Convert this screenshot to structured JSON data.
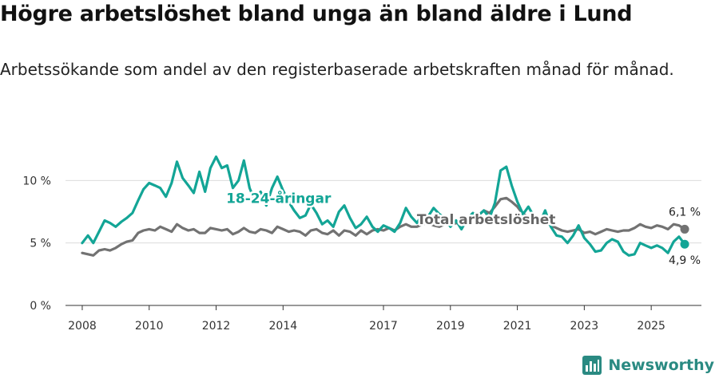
{
  "header": {
    "title": "Högre arbetslöshet bland unga än bland äldre i Lund",
    "subtitle": "Arbetssökande som andel av den registerbaserade arbetskraften månad för månad."
  },
  "brand": {
    "name": "Newsworthy"
  },
  "chart_data": {
    "type": "line",
    "title": "Högre arbetslöshet bland unga än bland äldre i Lund",
    "subtitle": "Arbetssökande som andel av den registerbaserade arbetskraften månad för månad.",
    "xlabel": "",
    "ylabel": "",
    "xlim": [
      2007.5,
      2026.5
    ],
    "ylim": [
      0,
      12
    ],
    "y_ticks": [
      {
        "value": 0,
        "label": "0 %"
      },
      {
        "value": 5,
        "label": "5 %"
      },
      {
        "value": 10,
        "label": "10 %"
      }
    ],
    "x_ticks": [
      "2008",
      "2010",
      "2012",
      "2014",
      "2017",
      "2019",
      "2021",
      "2023",
      "2025"
    ],
    "grid": true,
    "series": [
      {
        "name": "18-24-åringar",
        "label": "18-24-åringar",
        "color": "#13a596",
        "end_label": "4,9 %",
        "end_value": 4.9,
        "points": [
          [
            2008.0,
            5.0
          ],
          [
            2008.17,
            5.6
          ],
          [
            2008.33,
            5.0
          ],
          [
            2008.5,
            5.9
          ],
          [
            2008.67,
            6.8
          ],
          [
            2008.83,
            6.6
          ],
          [
            2009.0,
            6.3
          ],
          [
            2009.17,
            6.7
          ],
          [
            2009.33,
            7.0
          ],
          [
            2009.5,
            7.4
          ],
          [
            2009.67,
            8.4
          ],
          [
            2009.83,
            9.3
          ],
          [
            2010.0,
            9.8
          ],
          [
            2010.17,
            9.6
          ],
          [
            2010.33,
            9.4
          ],
          [
            2010.5,
            8.7
          ],
          [
            2010.67,
            9.8
          ],
          [
            2010.83,
            11.5
          ],
          [
            2011.0,
            10.2
          ],
          [
            2011.17,
            9.6
          ],
          [
            2011.33,
            9.0
          ],
          [
            2011.5,
            10.7
          ],
          [
            2011.67,
            9.1
          ],
          [
            2011.83,
            11.0
          ],
          [
            2012.0,
            11.9
          ],
          [
            2012.17,
            11.0
          ],
          [
            2012.33,
            11.2
          ],
          [
            2012.5,
            9.4
          ],
          [
            2012.67,
            10.0
          ],
          [
            2012.83,
            11.6
          ],
          [
            2013.0,
            9.4
          ],
          [
            2013.17,
            8.3
          ],
          [
            2013.33,
            9.1
          ],
          [
            2013.5,
            8.0
          ],
          [
            2013.67,
            9.4
          ],
          [
            2013.83,
            10.3
          ],
          [
            2014.0,
            9.2
          ],
          [
            2014.17,
            8.3
          ],
          [
            2014.33,
            7.6
          ],
          [
            2014.5,
            7.0
          ],
          [
            2014.67,
            7.2
          ],
          [
            2014.83,
            8.1
          ],
          [
            2015.0,
            7.4
          ],
          [
            2015.17,
            6.5
          ],
          [
            2015.33,
            6.8
          ],
          [
            2015.5,
            6.3
          ],
          [
            2015.67,
            7.5
          ],
          [
            2015.83,
            8.0
          ],
          [
            2016.0,
            7.0
          ],
          [
            2016.17,
            6.2
          ],
          [
            2016.33,
            6.5
          ],
          [
            2016.5,
            7.1
          ],
          [
            2016.67,
            6.3
          ],
          [
            2016.83,
            5.9
          ],
          [
            2017.0,
            6.4
          ],
          [
            2017.17,
            6.2
          ],
          [
            2017.33,
            5.9
          ],
          [
            2017.5,
            6.6
          ],
          [
            2017.67,
            7.8
          ],
          [
            2017.83,
            7.1
          ],
          [
            2018.0,
            6.6
          ],
          [
            2018.17,
            7.3
          ],
          [
            2018.33,
            7.1
          ],
          [
            2018.5,
            7.8
          ],
          [
            2018.67,
            7.3
          ],
          [
            2018.83,
            7.0
          ],
          [
            2019.0,
            6.3
          ],
          [
            2019.17,
            6.8
          ],
          [
            2019.33,
            6.1
          ],
          [
            2019.5,
            6.9
          ],
          [
            2019.67,
            7.4
          ],
          [
            2019.83,
            7.2
          ],
          [
            2020.0,
            7.6
          ],
          [
            2020.17,
            7.0
          ],
          [
            2020.33,
            8.2
          ],
          [
            2020.5,
            10.8
          ],
          [
            2020.67,
            11.1
          ],
          [
            2020.83,
            9.6
          ],
          [
            2021.0,
            8.3
          ],
          [
            2021.17,
            7.3
          ],
          [
            2021.33,
            7.9
          ],
          [
            2021.5,
            7.1
          ],
          [
            2021.67,
            6.6
          ],
          [
            2021.83,
            7.6
          ],
          [
            2022.0,
            6.3
          ],
          [
            2022.17,
            5.6
          ],
          [
            2022.33,
            5.5
          ],
          [
            2022.5,
            5.0
          ],
          [
            2022.67,
            5.6
          ],
          [
            2022.83,
            6.4
          ],
          [
            2023.0,
            5.4
          ],
          [
            2023.17,
            4.9
          ],
          [
            2023.33,
            4.3
          ],
          [
            2023.5,
            4.4
          ],
          [
            2023.67,
            5.0
          ],
          [
            2023.83,
            5.3
          ],
          [
            2024.0,
            5.1
          ],
          [
            2024.17,
            4.3
          ],
          [
            2024.33,
            4.0
          ],
          [
            2024.5,
            4.1
          ],
          [
            2024.67,
            5.0
          ],
          [
            2024.83,
            4.8
          ],
          [
            2025.0,
            4.6
          ],
          [
            2025.17,
            4.8
          ],
          [
            2025.33,
            4.6
          ],
          [
            2025.5,
            4.2
          ],
          [
            2025.67,
            5.1
          ],
          [
            2025.83,
            5.5
          ],
          [
            2026.0,
            4.9
          ]
        ]
      },
      {
        "name": "Total arbetslöshet",
        "label": "Total arbetslöshet",
        "color": "#727272",
        "end_label": "6,1 %",
        "end_value": 6.1,
        "points": [
          [
            2008.0,
            4.2
          ],
          [
            2008.17,
            4.1
          ],
          [
            2008.33,
            4.0
          ],
          [
            2008.5,
            4.4
          ],
          [
            2008.67,
            4.5
          ],
          [
            2008.83,
            4.4
          ],
          [
            2009.0,
            4.6
          ],
          [
            2009.17,
            4.9
          ],
          [
            2009.33,
            5.1
          ],
          [
            2009.5,
            5.2
          ],
          [
            2009.67,
            5.8
          ],
          [
            2009.83,
            6.0
          ],
          [
            2010.0,
            6.1
          ],
          [
            2010.17,
            6.0
          ],
          [
            2010.33,
            6.3
          ],
          [
            2010.5,
            6.1
          ],
          [
            2010.67,
            5.9
          ],
          [
            2010.83,
            6.5
          ],
          [
            2011.0,
            6.2
          ],
          [
            2011.17,
            6.0
          ],
          [
            2011.33,
            6.1
          ],
          [
            2011.5,
            5.8
          ],
          [
            2011.67,
            5.8
          ],
          [
            2011.83,
            6.2
          ],
          [
            2012.0,
            6.1
          ],
          [
            2012.17,
            6.0
          ],
          [
            2012.33,
            6.1
          ],
          [
            2012.5,
            5.7
          ],
          [
            2012.67,
            5.9
          ],
          [
            2012.83,
            6.2
          ],
          [
            2013.0,
            5.9
          ],
          [
            2013.17,
            5.8
          ],
          [
            2013.33,
            6.1
          ],
          [
            2013.5,
            6.0
          ],
          [
            2013.67,
            5.8
          ],
          [
            2013.83,
            6.3
          ],
          [
            2014.0,
            6.1
          ],
          [
            2014.17,
            5.9
          ],
          [
            2014.33,
            6.0
          ],
          [
            2014.5,
            5.9
          ],
          [
            2014.67,
            5.6
          ],
          [
            2014.83,
            6.0
          ],
          [
            2015.0,
            6.1
          ],
          [
            2015.17,
            5.8
          ],
          [
            2015.33,
            5.7
          ],
          [
            2015.5,
            6.0
          ],
          [
            2015.67,
            5.6
          ],
          [
            2015.83,
            6.0
          ],
          [
            2016.0,
            5.9
          ],
          [
            2016.17,
            5.6
          ],
          [
            2016.33,
            6.0
          ],
          [
            2016.5,
            5.7
          ],
          [
            2016.67,
            6.0
          ],
          [
            2016.83,
            6.1
          ],
          [
            2017.0,
            6.0
          ],
          [
            2017.17,
            6.2
          ],
          [
            2017.33,
            6.0
          ],
          [
            2017.5,
            6.3
          ],
          [
            2017.67,
            6.5
          ],
          [
            2017.83,
            6.3
          ],
          [
            2018.0,
            6.3
          ],
          [
            2018.17,
            6.5
          ],
          [
            2018.33,
            6.6
          ],
          [
            2018.5,
            6.4
          ],
          [
            2018.67,
            6.3
          ],
          [
            2018.83,
            6.5
          ],
          [
            2019.0,
            6.4
          ],
          [
            2019.17,
            6.6
          ],
          [
            2019.33,
            6.5
          ],
          [
            2019.5,
            6.7
          ],
          [
            2019.67,
            6.9
          ],
          [
            2019.83,
            7.2
          ],
          [
            2020.0,
            7.6
          ],
          [
            2020.17,
            7.4
          ],
          [
            2020.33,
            7.9
          ],
          [
            2020.5,
            8.5
          ],
          [
            2020.67,
            8.6
          ],
          [
            2020.83,
            8.3
          ],
          [
            2021.0,
            7.9
          ],
          [
            2021.17,
            7.3
          ],
          [
            2021.33,
            7.1
          ],
          [
            2021.5,
            6.9
          ],
          [
            2021.67,
            6.6
          ],
          [
            2021.83,
            6.7
          ],
          [
            2022.0,
            6.4
          ],
          [
            2022.17,
            6.2
          ],
          [
            2022.33,
            6.0
          ],
          [
            2022.5,
            5.9
          ],
          [
            2022.67,
            6.0
          ],
          [
            2022.83,
            6.1
          ],
          [
            2023.0,
            5.8
          ],
          [
            2023.17,
            5.9
          ],
          [
            2023.33,
            5.7
          ],
          [
            2023.5,
            5.9
          ],
          [
            2023.67,
            6.1
          ],
          [
            2023.83,
            6.0
          ],
          [
            2024.0,
            5.9
          ],
          [
            2024.17,
            6.0
          ],
          [
            2024.33,
            6.0
          ],
          [
            2024.5,
            6.2
          ],
          [
            2024.67,
            6.5
          ],
          [
            2024.83,
            6.3
          ],
          [
            2025.0,
            6.2
          ],
          [
            2025.17,
            6.4
          ],
          [
            2025.33,
            6.3
          ],
          [
            2025.5,
            6.1
          ],
          [
            2025.67,
            6.5
          ],
          [
            2025.83,
            6.4
          ],
          [
            2026.0,
            6.1
          ]
        ]
      }
    ]
  }
}
